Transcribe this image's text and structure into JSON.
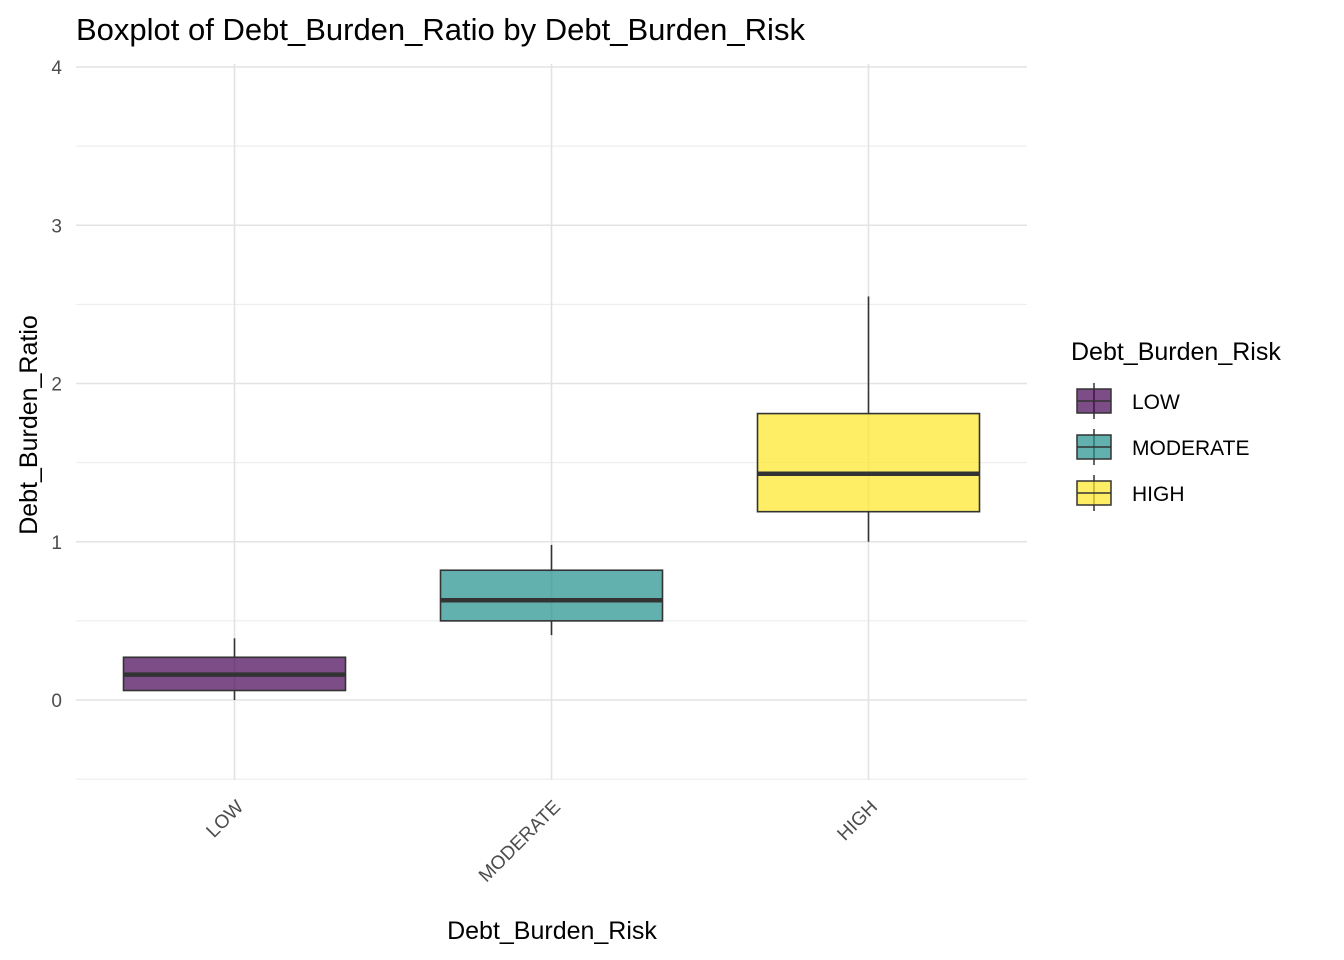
{
  "chart_data": {
    "type": "boxplot",
    "title": "Boxplot of Debt_Burden_Ratio by Debt_Burden_Risk",
    "xlabel": "Debt_Burden_Risk",
    "ylabel": "Debt_Burden_Ratio",
    "categories": [
      "LOW",
      "MODERATE",
      "HIGH"
    ],
    "ylim": [
      -0.5,
      4
    ],
    "y_ticks": [
      0,
      1,
      2,
      3,
      4
    ],
    "grid": true,
    "legend": {
      "title": "Debt_Burden_Risk",
      "position": "right"
    },
    "series": [
      {
        "name": "LOW",
        "color": "#440154",
        "whisker_low": 0.0,
        "q1": 0.06,
        "median": 0.16,
        "q3": 0.27,
        "whisker_high": 0.39
      },
      {
        "name": "MODERATE",
        "color": "#21908C",
        "whisker_low": 0.41,
        "q1": 0.5,
        "median": 0.63,
        "q3": 0.82,
        "whisker_high": 0.98
      },
      {
        "name": "HIGH",
        "color": "#FDE725",
        "whisker_low": 1.0,
        "q1": 1.19,
        "median": 1.43,
        "q3": 1.81,
        "whisker_high": 2.55
      }
    ]
  }
}
